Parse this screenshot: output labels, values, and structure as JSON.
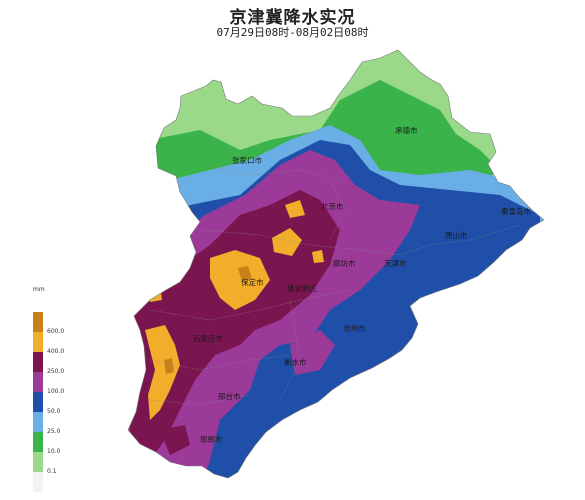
{
  "title": "京津冀降水实况",
  "subtitle": "07月29日08时-08月02日08时",
  "legend": {
    "unit": "mm",
    "bins": [
      {
        "label": "",
        "color": "#f2f2f2"
      },
      {
        "label": "0.1",
        "color": "#9ad88a"
      },
      {
        "label": "10.0",
        "color": "#3ab34a"
      },
      {
        "label": "25.0",
        "color": "#6aaee6"
      },
      {
        "label": "50.0",
        "color": "#1f4fa8"
      },
      {
        "label": "100.0",
        "color": "#9b3a98"
      },
      {
        "label": "250.0",
        "color": "#7b1550"
      },
      {
        "label": "400.0",
        "color": "#f0ae2a"
      },
      {
        "label": "600.0",
        "color": "#c9801a"
      }
    ]
  },
  "cities": [
    {
      "name": "承德市",
      "key": "chengde"
    },
    {
      "name": "张家口市",
      "key": "zhangjiakou"
    },
    {
      "name": "北京市",
      "key": "beijing"
    },
    {
      "name": "秦皇岛市",
      "key": "qinhuangdao"
    },
    {
      "name": "唐山市",
      "key": "tangshan"
    },
    {
      "name": "廊坊市",
      "key": "langfang"
    },
    {
      "name": "天津市",
      "key": "tianjin"
    },
    {
      "name": "保定市",
      "key": "baoding"
    },
    {
      "name": "雄安新区",
      "key": "xiongan"
    },
    {
      "name": "沧州市",
      "key": "cangzhou"
    },
    {
      "name": "石家庄市",
      "key": "shijiazhuang"
    },
    {
      "name": "衡水市",
      "key": "hengshui"
    },
    {
      "name": "邢台市",
      "key": "xingtai"
    },
    {
      "name": "邯郸市",
      "key": "handan"
    }
  ]
}
